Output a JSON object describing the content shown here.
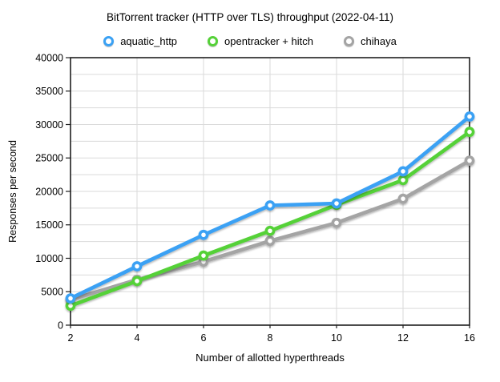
{
  "chart_data": {
    "type": "line",
    "title": "BitTorrent tracker (HTTP over TLS) throughput (2022-04-11)",
    "xlabel": "Number of allotted hyperthreads",
    "ylabel": "Responses per second",
    "categories": [
      2,
      4,
      6,
      8,
      10,
      12,
      16
    ],
    "series": [
      {
        "name": "aquatic_http",
        "color": "#3aa1f4",
        "values": [
          4000,
          8800,
          13500,
          17900,
          18200,
          23000,
          31200
        ]
      },
      {
        "name": "opentracker + hitch",
        "color": "#55d138",
        "values": [
          2900,
          6600,
          10400,
          14100,
          18000,
          21700,
          28900
        ]
      },
      {
        "name": "chihaya",
        "color": "#a4a4a4",
        "values": [
          3800,
          6800,
          9500,
          12600,
          15300,
          18900,
          24600
        ]
      }
    ],
    "ylim": [
      0,
      40000
    ],
    "y_major_step": 5000,
    "y_minor_step": 2500,
    "grid": true,
    "legend_position": "top",
    "marker_style": "ring"
  },
  "colors": {
    "background": "#ffffff",
    "grid": "#dadada",
    "axis": "#1f1f1f",
    "text": "#000000"
  }
}
